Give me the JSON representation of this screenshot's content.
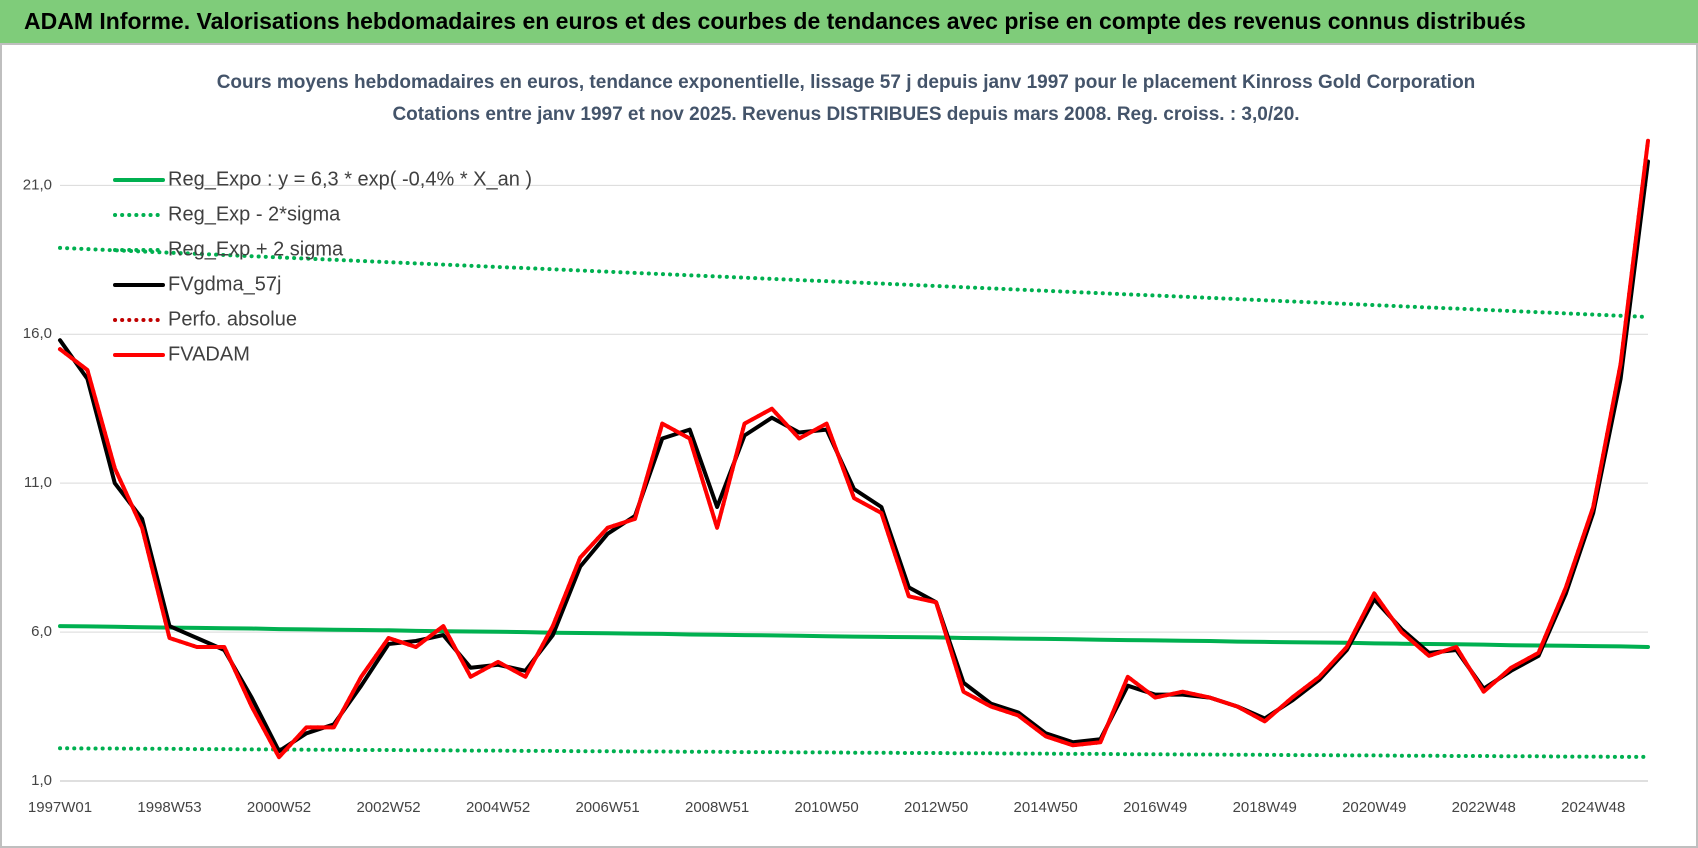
{
  "header": {
    "title": "ADAM Informe. Valorisations hebdomadaires en euros et des courbes de tendances avec prise en compte des revenus connus distribués"
  },
  "chart_data": {
    "type": "line",
    "title": "Cours moyens hebdomadaires en euros, tendance exponentielle, lissage 57 j depuis janv 1997  pour le placement Kinross Gold Corporation",
    "subtitle": "Cotations entre janv 1997 et nov 2025. Revenus DISTRIBUES depuis mars 2008.  Reg. croiss. : 3,0/20.",
    "categories": [
      "1997W01",
      null,
      null,
      null,
      "1998W53",
      null,
      null,
      null,
      "2000W52",
      null,
      null,
      null,
      "2002W52",
      null,
      null,
      null,
      "2004W52",
      null,
      null,
      null,
      "2006W51",
      null,
      null,
      null,
      "2008W51",
      null,
      null,
      null,
      "2010W50",
      null,
      null,
      null,
      "2012W50",
      null,
      null,
      null,
      "2014W50",
      null,
      null,
      null,
      "2016W49",
      null,
      null,
      null,
      "2018W49",
      null,
      null,
      null,
      "2020W49",
      null,
      null,
      null,
      "2022W48",
      null,
      null,
      null,
      "2024W48",
      null,
      null
    ],
    "ylim": [
      1,
      24
    ],
    "yticks": [
      {
        "value": 1,
        "label": "1,0"
      },
      {
        "value": 6,
        "label": "6,0"
      },
      {
        "value": 11,
        "label": "11,0"
      },
      {
        "value": 16,
        "label": "16,0"
      },
      {
        "value": 21,
        "label": "21,0"
      }
    ],
    "grid": true,
    "legend": "upper left",
    "series": [
      {
        "name": "Reg_Expo : y = 6,3 * exp( -0,4% *  X_an )",
        "color": "#00b050",
        "line_style": "solid",
        "values": [
          6.2,
          6.19,
          6.18,
          6.16,
          6.15,
          6.14,
          6.13,
          6.12,
          6.1,
          6.09,
          6.08,
          6.07,
          6.06,
          6.04,
          6.03,
          6.02,
          6.01,
          6.0,
          5.98,
          5.97,
          5.96,
          5.95,
          5.94,
          5.92,
          5.91,
          5.9,
          5.89,
          5.88,
          5.86,
          5.85,
          5.84,
          5.83,
          5.82,
          5.8,
          5.79,
          5.78,
          5.77,
          5.76,
          5.74,
          5.73,
          5.72,
          5.71,
          5.7,
          5.68,
          5.67,
          5.66,
          5.65,
          5.64,
          5.62,
          5.61,
          5.6,
          5.59,
          5.58,
          5.56,
          5.55,
          5.54,
          5.53,
          5.52,
          5.5
        ]
      },
      {
        "name": "Reg_Exp - 2*sigma",
        "color": "#00b050",
        "line_style": "dotted",
        "values": [
          2.1,
          2.09,
          2.09,
          2.08,
          2.08,
          2.07,
          2.07,
          2.06,
          2.06,
          2.05,
          2.05,
          2.04,
          2.04,
          2.03,
          2.03,
          2.02,
          2.02,
          2.01,
          2.01,
          2.0,
          2.0,
          1.99,
          1.99,
          1.98,
          1.98,
          1.97,
          1.97,
          1.96,
          1.96,
          1.95,
          1.95,
          1.94,
          1.94,
          1.93,
          1.93,
          1.92,
          1.92,
          1.91,
          1.91,
          1.9,
          1.9,
          1.89,
          1.89,
          1.88,
          1.88,
          1.87,
          1.87,
          1.86,
          1.86,
          1.85,
          1.85,
          1.84,
          1.84,
          1.83,
          1.83,
          1.82,
          1.82,
          1.81,
          1.81
        ]
      },
      {
        "name": "Reg_Exp + 2 sigma",
        "color": "#00b050",
        "line_style": "dotted",
        "values": [
          18.9,
          18.86,
          18.82,
          18.78,
          18.74,
          18.7,
          18.66,
          18.62,
          18.58,
          18.54,
          18.5,
          18.46,
          18.42,
          18.38,
          18.34,
          18.3,
          18.26,
          18.22,
          18.18,
          18.14,
          18.1,
          18.06,
          18.02,
          17.98,
          17.94,
          17.9,
          17.86,
          17.82,
          17.78,
          17.74,
          17.7,
          17.66,
          17.62,
          17.58,
          17.54,
          17.5,
          17.46,
          17.42,
          17.38,
          17.34,
          17.3,
          17.26,
          17.22,
          17.18,
          17.14,
          17.1,
          17.06,
          17.02,
          16.98,
          16.94,
          16.9,
          16.86,
          16.82,
          16.78,
          16.74,
          16.7,
          16.66,
          16.62,
          16.58
        ]
      },
      {
        "name": "FVgdma_57j",
        "color": "#000000",
        "line_style": "solid",
        "values": [
          15.8,
          14.5,
          11.0,
          9.8,
          6.2,
          5.8,
          5.4,
          3.8,
          2.0,
          2.6,
          2.9,
          4.2,
          5.6,
          5.7,
          5.9,
          4.8,
          4.9,
          4.7,
          5.9,
          8.2,
          9.3,
          9.9,
          12.5,
          12.8,
          10.2,
          12.6,
          13.2,
          12.7,
          12.8,
          10.8,
          10.2,
          7.5,
          7.0,
          4.3,
          3.6,
          3.3,
          2.6,
          2.3,
          2.4,
          4.2,
          3.9,
          3.9,
          3.8,
          3.5,
          3.1,
          3.7,
          4.4,
          5.4,
          7.1,
          6.1,
          5.3,
          5.4,
          4.1,
          4.7,
          5.2,
          7.3,
          10.0,
          14.5,
          21.8
        ]
      },
      {
        "name": "Perfo. absolue",
        "color": "#c00000",
        "line_style": "dotted",
        "values": [
          15.5,
          14.8,
          11.5,
          9.5,
          5.8,
          5.5,
          5.5,
          3.5,
          1.8,
          2.8,
          2.8,
          4.5,
          5.8,
          5.5,
          6.2,
          4.5,
          5.0,
          4.5,
          6.2,
          8.5,
          9.5,
          9.8,
          13.0,
          12.5,
          9.5,
          13.0,
          13.5,
          12.5,
          13.0,
          10.5,
          10.0,
          7.2,
          7.0,
          4.0,
          3.5,
          3.2,
          2.5,
          2.2,
          2.3,
          4.5,
          3.8,
          4.0,
          3.8,
          3.5,
          3.0,
          3.8,
          4.5,
          5.5,
          7.3,
          6.0,
          5.2,
          5.5,
          4.0,
          4.8,
          5.3,
          7.5,
          10.2,
          15.0,
          22.5
        ]
      },
      {
        "name": "FVADAM",
        "color": "#ff0000",
        "line_style": "solid",
        "values": [
          15.5,
          14.8,
          11.5,
          9.5,
          5.8,
          5.5,
          5.5,
          3.5,
          1.8,
          2.8,
          2.8,
          4.5,
          5.8,
          5.5,
          6.2,
          4.5,
          5.0,
          4.5,
          6.2,
          8.5,
          9.5,
          9.8,
          13.0,
          12.5,
          9.5,
          13.0,
          13.5,
          12.5,
          13.0,
          10.5,
          10.0,
          7.2,
          7.0,
          4.0,
          3.5,
          3.2,
          2.5,
          2.2,
          2.3,
          4.5,
          3.8,
          4.0,
          3.8,
          3.5,
          3.0,
          3.8,
          4.5,
          5.5,
          7.3,
          6.0,
          5.2,
          5.5,
          4.0,
          4.8,
          5.3,
          7.5,
          10.2,
          15.0,
          22.5
        ]
      }
    ]
  }
}
